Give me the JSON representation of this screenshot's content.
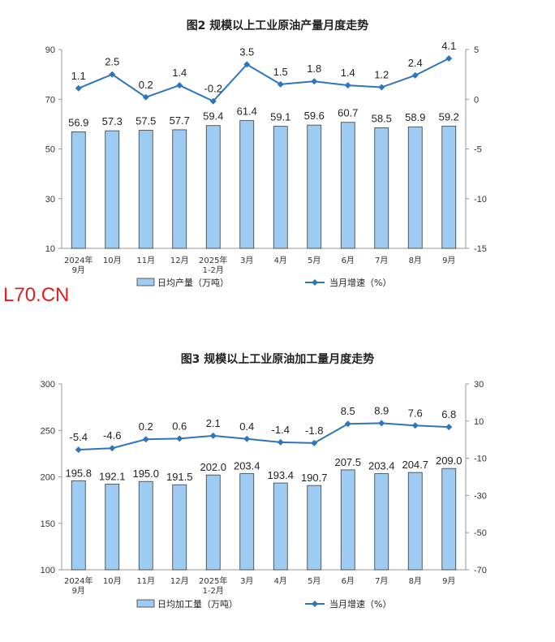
{
  "watermark": "L70.CN",
  "chart_data": [
    {
      "type": "bar",
      "title": "图2  规模以上工业原油产量月度走势",
      "categories": [
        "2024年\n9月",
        "10月",
        "11月",
        "12月",
        "2025年\n1-2月",
        "3月",
        "4月",
        "5月",
        "6月",
        "7月",
        "8月",
        "9月"
      ],
      "series": [
        {
          "name": "日均产量（万吨）",
          "type": "bar",
          "axis": "left",
          "color": "#9ecbf2",
          "values": [
            56.9,
            57.3,
            57.5,
            57.7,
            59.4,
            61.4,
            59.1,
            59.6,
            60.7,
            58.5,
            58.9,
            59.2
          ]
        },
        {
          "name": "当月增速（%）",
          "type": "line",
          "axis": "right",
          "color": "#2e75c0",
          "values": [
            1.1,
            2.5,
            0.2,
            1.4,
            -0.2,
            3.5,
            1.5,
            1.8,
            1.4,
            1.2,
            2.4,
            4.1
          ]
        }
      ],
      "ylim_left": [
        10,
        90
      ],
      "yticks_left": [
        "90",
        "70",
        "50",
        "30",
        "10"
      ],
      "ylim_right": [
        -15,
        5
      ],
      "yticks_right": [
        "5",
        "0",
        "-5",
        "-10",
        "-15"
      ],
      "grid": false,
      "legend": "bottom"
    },
    {
      "type": "bar",
      "title": "图3  规模以上工业原油加工量月度走势",
      "categories": [
        "2024年\n9月",
        "10月",
        "11月",
        "12月",
        "2025年\n1-2月",
        "3月",
        "4月",
        "5月",
        "6月",
        "7月",
        "8月",
        "9月"
      ],
      "series": [
        {
          "name": "日均加工量（万吨）",
          "type": "bar",
          "axis": "left",
          "color": "#9ecbf2",
          "values": [
            195.8,
            192.1,
            195.0,
            191.5,
            202.0,
            203.4,
            193.4,
            190.7,
            207.5,
            203.4,
            204.7,
            209.0
          ],
          "labels": [
            "195.8",
            "192.1",
            "195.0",
            "191.5",
            "202.0",
            "203.4",
            "193.4",
            "190.7",
            "207.5",
            "203.4",
            "204.7",
            "209.0"
          ]
        },
        {
          "name": "当月增速（%）",
          "type": "line",
          "axis": "right",
          "color": "#2e75c0",
          "values": [
            -5.4,
            -4.6,
            0.2,
            0.6,
            2.1,
            0.4,
            -1.4,
            -1.8,
            8.5,
            8.9,
            7.6,
            6.8
          ]
        }
      ],
      "ylim_left": [
        100,
        300
      ],
      "yticks_left": [
        "300",
        "250",
        "200",
        "150",
        "100"
      ],
      "ylim_right": [
        -70,
        30
      ],
      "yticks_right": [
        "30",
        "10",
        "-10",
        "-30",
        "-50",
        "-70"
      ],
      "grid": false,
      "legend": "bottom"
    }
  ]
}
